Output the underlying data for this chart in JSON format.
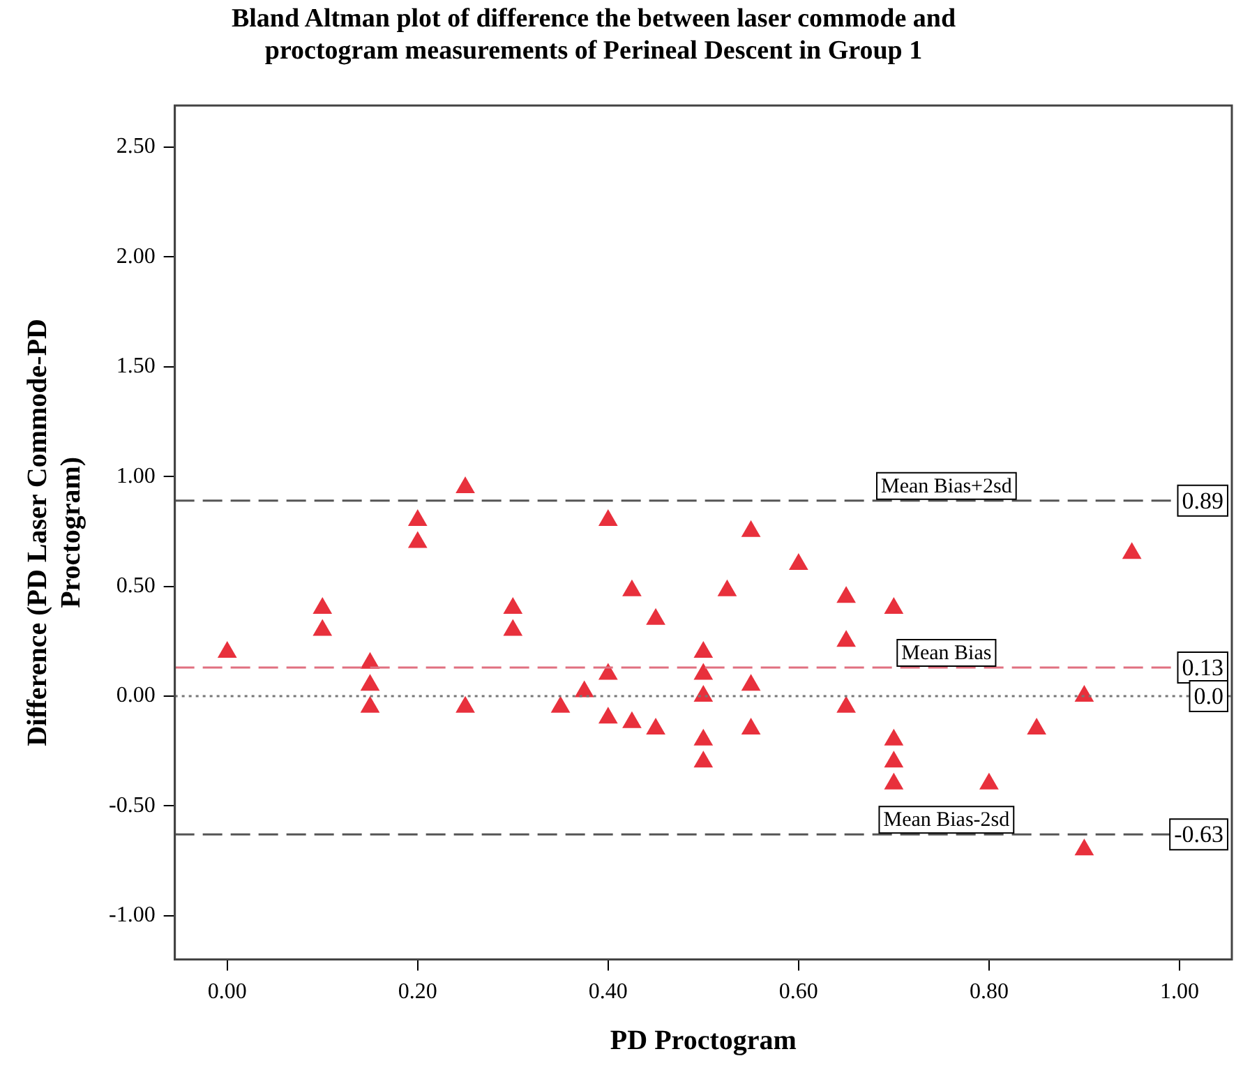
{
  "chart_data": {
    "type": "scatter",
    "title": "Bland Altman plot of difference the between laser commode and proctogram measurements of Perineal Descent in Group 1",
    "xlabel": "PD Proctogram",
    "ylabel": "Difference (PD Laser Commode-PD Proctogram)",
    "series": [
      {
        "color": "#e8303c",
        "x": [
          0.0,
          0.1,
          0.1,
          0.15,
          0.15,
          0.15,
          0.2,
          0.2,
          0.25,
          0.25,
          0.3,
          0.3,
          0.35,
          0.375,
          0.4,
          0.4,
          0.4,
          0.425,
          0.425,
          0.45,
          0.45,
          0.5,
          0.5,
          0.5,
          0.5,
          0.5,
          0.525,
          0.55,
          0.55,
          0.55,
          0.6,
          0.65,
          0.65,
          0.65,
          0.7,
          0.7,
          0.7,
          0.7,
          0.8,
          0.85,
          0.9,
          0.9,
          0.95
        ],
        "values": [
          0.2,
          0.4,
          0.3,
          0.15,
          0.05,
          -0.05,
          0.8,
          0.7,
          0.95,
          -0.05,
          0.4,
          0.3,
          -0.05,
          0.02,
          0.8,
          0.1,
          -0.1,
          0.48,
          -0.12,
          0.35,
          -0.15,
          0.2,
          0.1,
          0.0,
          -0.2,
          -0.3,
          0.48,
          0.75,
          0.05,
          -0.15,
          0.6,
          0.45,
          0.25,
          -0.05,
          0.4,
          -0.2,
          -0.3,
          -0.4,
          -0.4,
          -0.15,
          0.0,
          -0.7,
          0.65
        ]
      }
    ],
    "marker": "triangle",
    "xlim": [
      -0.055,
      1.055
    ],
    "xticks": [
      {
        "value": 0,
        "label": "0.00"
      },
      {
        "value": 0.2,
        "label": "0.20"
      },
      {
        "value": 0.4,
        "label": "0.40"
      },
      {
        "value": 0.6,
        "label": "0.60"
      },
      {
        "value": 0.8,
        "label": "0.80"
      },
      {
        "value": 1,
        "label": "1.00"
      }
    ],
    "ylim": [
      -1.2,
      2.69
    ],
    "yticks": [
      {
        "value": -1,
        "label": "-1.00"
      },
      {
        "value": -0.5,
        "label": "-0.50"
      },
      {
        "value": 0,
        "label": "0.00"
      },
      {
        "value": 0.5,
        "label": "0.50"
      },
      {
        "value": 1,
        "label": "1.00"
      },
      {
        "value": 1.5,
        "label": "1.50"
      },
      {
        "value": 2,
        "label": "2.00"
      },
      {
        "value": 2.5,
        "label": "2.50"
      }
    ],
    "ref_lines": [
      {
        "axis": "y",
        "value": 0.89,
        "label": "Mean Bias+2sd",
        "color": "#555555",
        "line_style": "dashed"
      },
      {
        "axis": "y",
        "value": 0.13,
        "label": "Mean Bias",
        "color": "#e07080",
        "line_style": "dashed"
      },
      {
        "axis": "y",
        "value": 0,
        "color": "#777777",
        "line_style": "dotted"
      },
      {
        "axis": "y",
        "value": -0.63,
        "label": "Mean Bias-2sd",
        "color": "#555555",
        "line_style": "dashed"
      }
    ],
    "annotations": [
      {
        "text": "0.89",
        "y": 0.89
      },
      {
        "text": "0.13",
        "y": 0.13
      },
      {
        "text": "0.0",
        "y": 0
      },
      {
        "text": "-0.63",
        "y": -0.63
      }
    ],
    "grid": false,
    "legend": false
  }
}
